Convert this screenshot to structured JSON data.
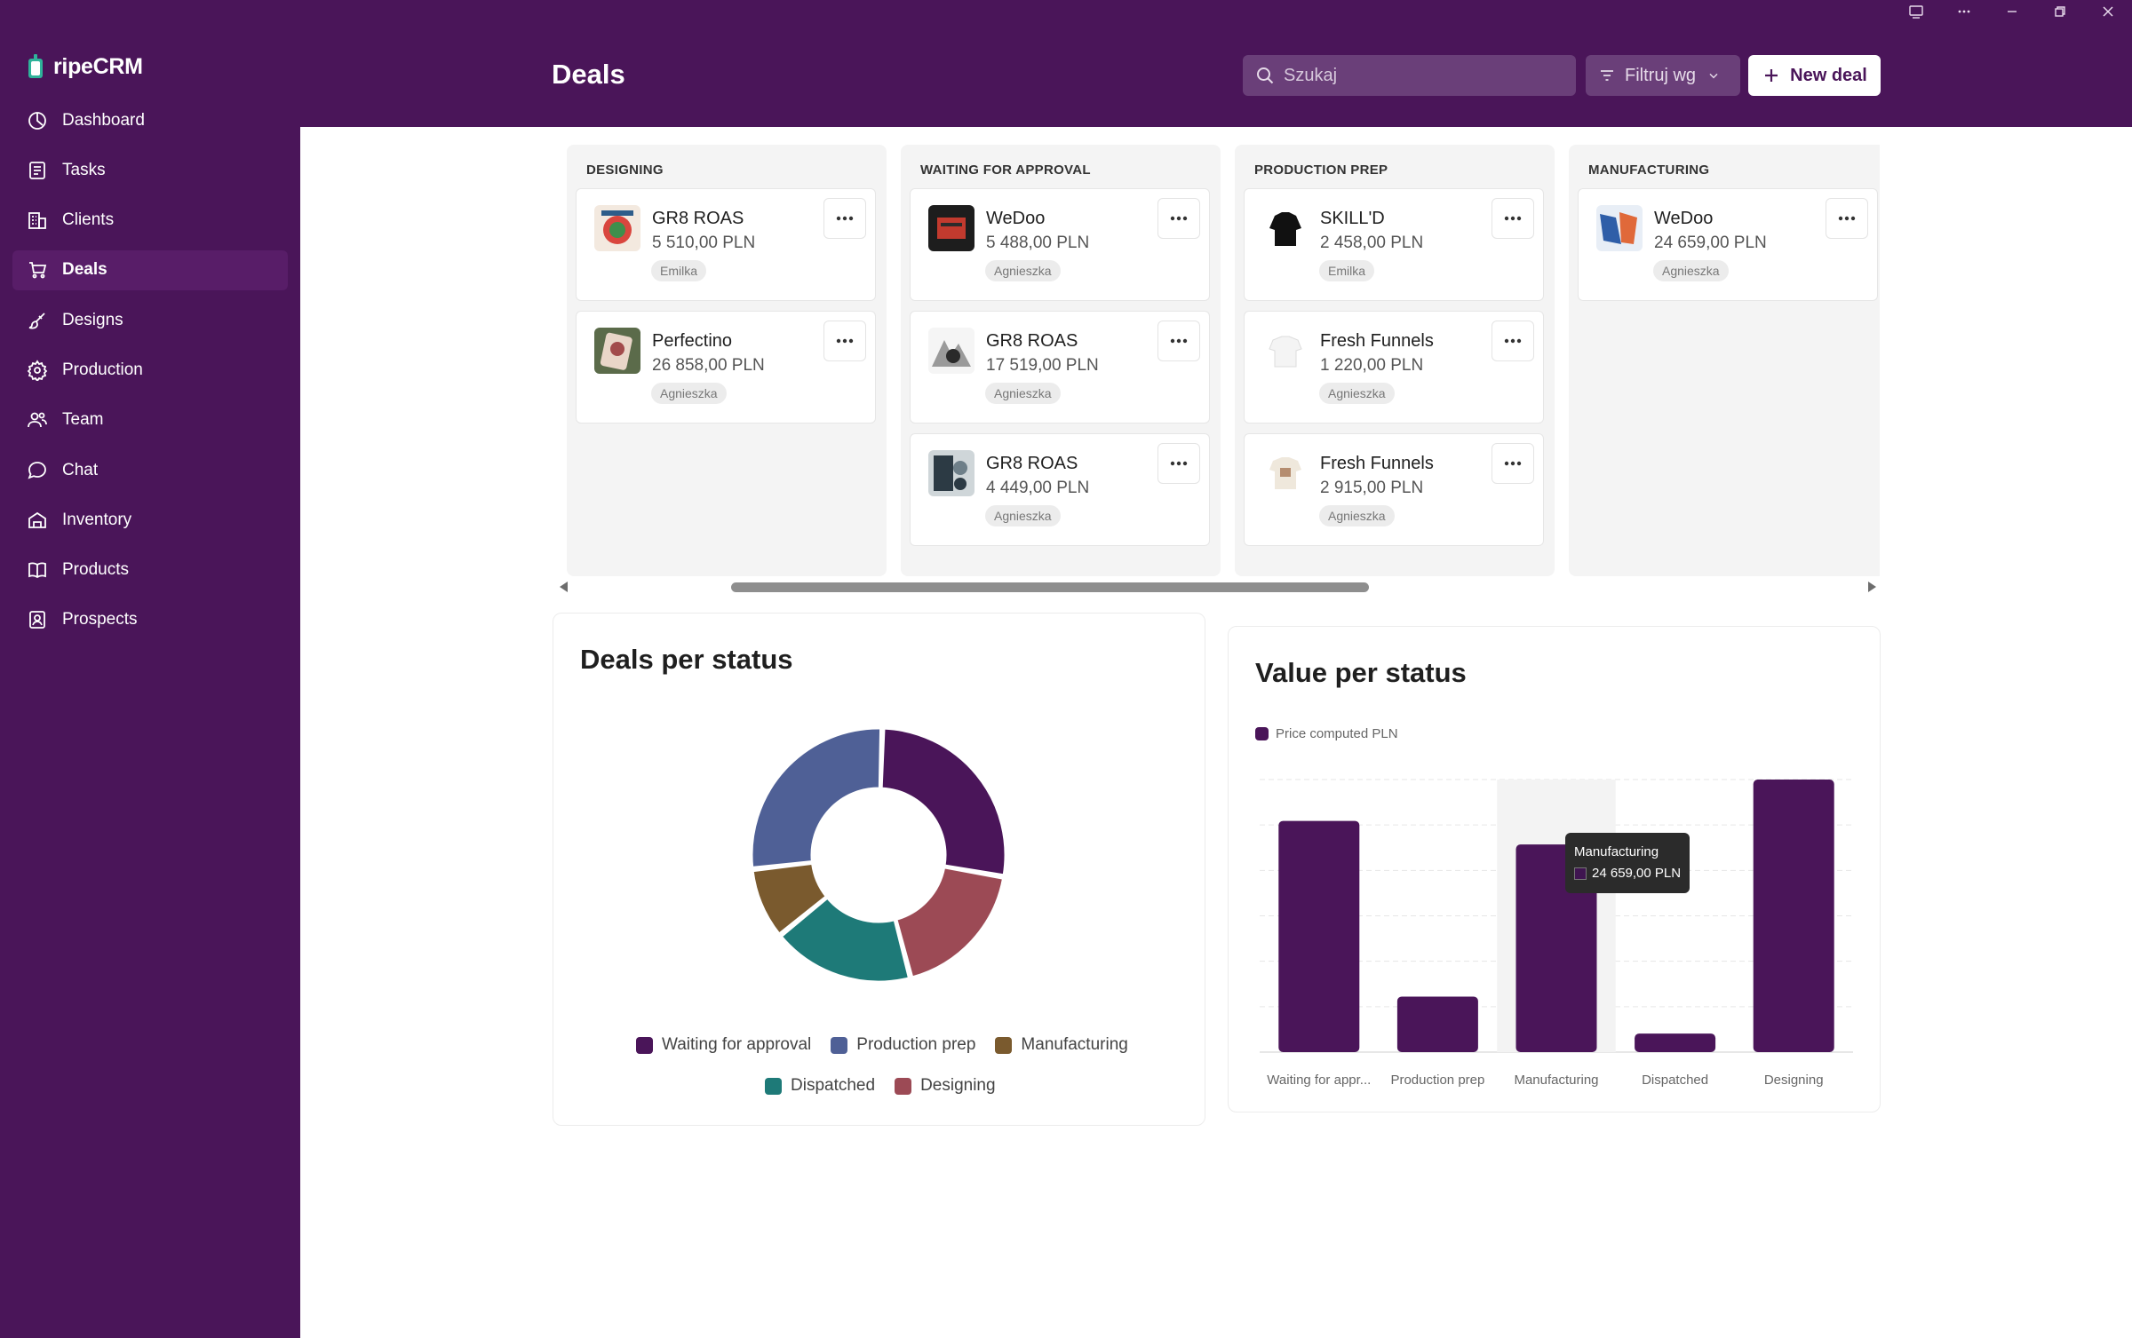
{
  "app": {
    "brand": "ripeCRM"
  },
  "page": {
    "title": "Deals"
  },
  "header": {
    "search_placeholder": "Szukaj",
    "filter_label": "Filtruj wg",
    "new_deal_label": "New deal"
  },
  "sidebar": {
    "items": [
      {
        "label": "Dashboard",
        "icon": "dashboard-icon"
      },
      {
        "label": "Tasks",
        "icon": "tasks-icon"
      },
      {
        "label": "Clients",
        "icon": "clients-icon"
      },
      {
        "label": "Deals",
        "icon": "cart-icon",
        "active": true
      },
      {
        "label": "Designs",
        "icon": "brush-icon"
      },
      {
        "label": "Production",
        "icon": "gear-icon"
      },
      {
        "label": "Team",
        "icon": "team-icon"
      },
      {
        "label": "Chat",
        "icon": "chat-icon"
      },
      {
        "label": "Inventory",
        "icon": "warehouse-icon"
      },
      {
        "label": "Products",
        "icon": "book-icon"
      },
      {
        "label": "Prospects",
        "icon": "prospects-icon"
      }
    ]
  },
  "board": {
    "columns": [
      {
        "title": "DESIGNING",
        "cards": [
          {
            "name": "GR8 ROAS",
            "value": "5 510,00 PLN",
            "owner": "Emilka"
          },
          {
            "name": "Perfectino",
            "value": "26 858,00 PLN",
            "owner": "Agnieszka"
          }
        ]
      },
      {
        "title": "WAITING FOR APPROVAL",
        "cards": [
          {
            "name": "WeDoo",
            "value": "5 488,00 PLN",
            "owner": "Agnieszka"
          },
          {
            "name": "GR8 ROAS",
            "value": "17 519,00 PLN",
            "owner": "Agnieszka"
          },
          {
            "name": "GR8 ROAS",
            "value": "4 449,00 PLN",
            "owner": "Agnieszka"
          }
        ]
      },
      {
        "title": "PRODUCTION PREP",
        "cards": [
          {
            "name": "SKILL'D",
            "value": "2 458,00 PLN",
            "owner": "Emilka"
          },
          {
            "name": "Fresh Funnels",
            "value": "1 220,00 PLN",
            "owner": "Agnieszka"
          },
          {
            "name": "Fresh Funnels",
            "value": "2 915,00 PLN",
            "owner": "Agnieszka"
          }
        ]
      },
      {
        "title": "MANUFACTURING",
        "cards": [
          {
            "name": "WeDoo",
            "value": "24 659,00 PLN",
            "owner": "Agnieszka"
          }
        ]
      }
    ]
  },
  "charts": {
    "deals_per_status": {
      "title": "Deals per status"
    },
    "value_per_status": {
      "title": "Value per status",
      "tooltip": {
        "category": "Manufacturing",
        "value": "24 659,00 PLN"
      }
    }
  },
  "chart_data": [
    {
      "type": "pie",
      "title": "Deals per status",
      "labels": [
        "Waiting for approval",
        "Designing",
        "Dispatched",
        "Manufacturing",
        "Production prep"
      ],
      "values": [
        3,
        2,
        2,
        1,
        3
      ],
      "colors": [
        "#4a1559",
        "#9c4a55",
        "#1e7a78",
        "#7a5a2e",
        "#4f6096"
      ],
      "legend": [
        "Waiting for approval",
        "Production prep",
        "Manufacturing",
        "Dispatched",
        "Designing"
      ],
      "donut": true
    },
    {
      "type": "bar",
      "title": "Value per status",
      "categories": [
        "Waiting for appr...",
        "Production prep",
        "Manufacturing",
        "Dispatched",
        "Designing"
      ],
      "series": [
        {
          "name": "Price computed PLN",
          "values": [
            27456,
            6593,
            24659,
            2200,
            32368
          ],
          "color": "#4a1559"
        }
      ],
      "ylim": [
        0,
        32368
      ],
      "grid": true,
      "legend": "top-left",
      "highlight": "Manufacturing"
    }
  ]
}
